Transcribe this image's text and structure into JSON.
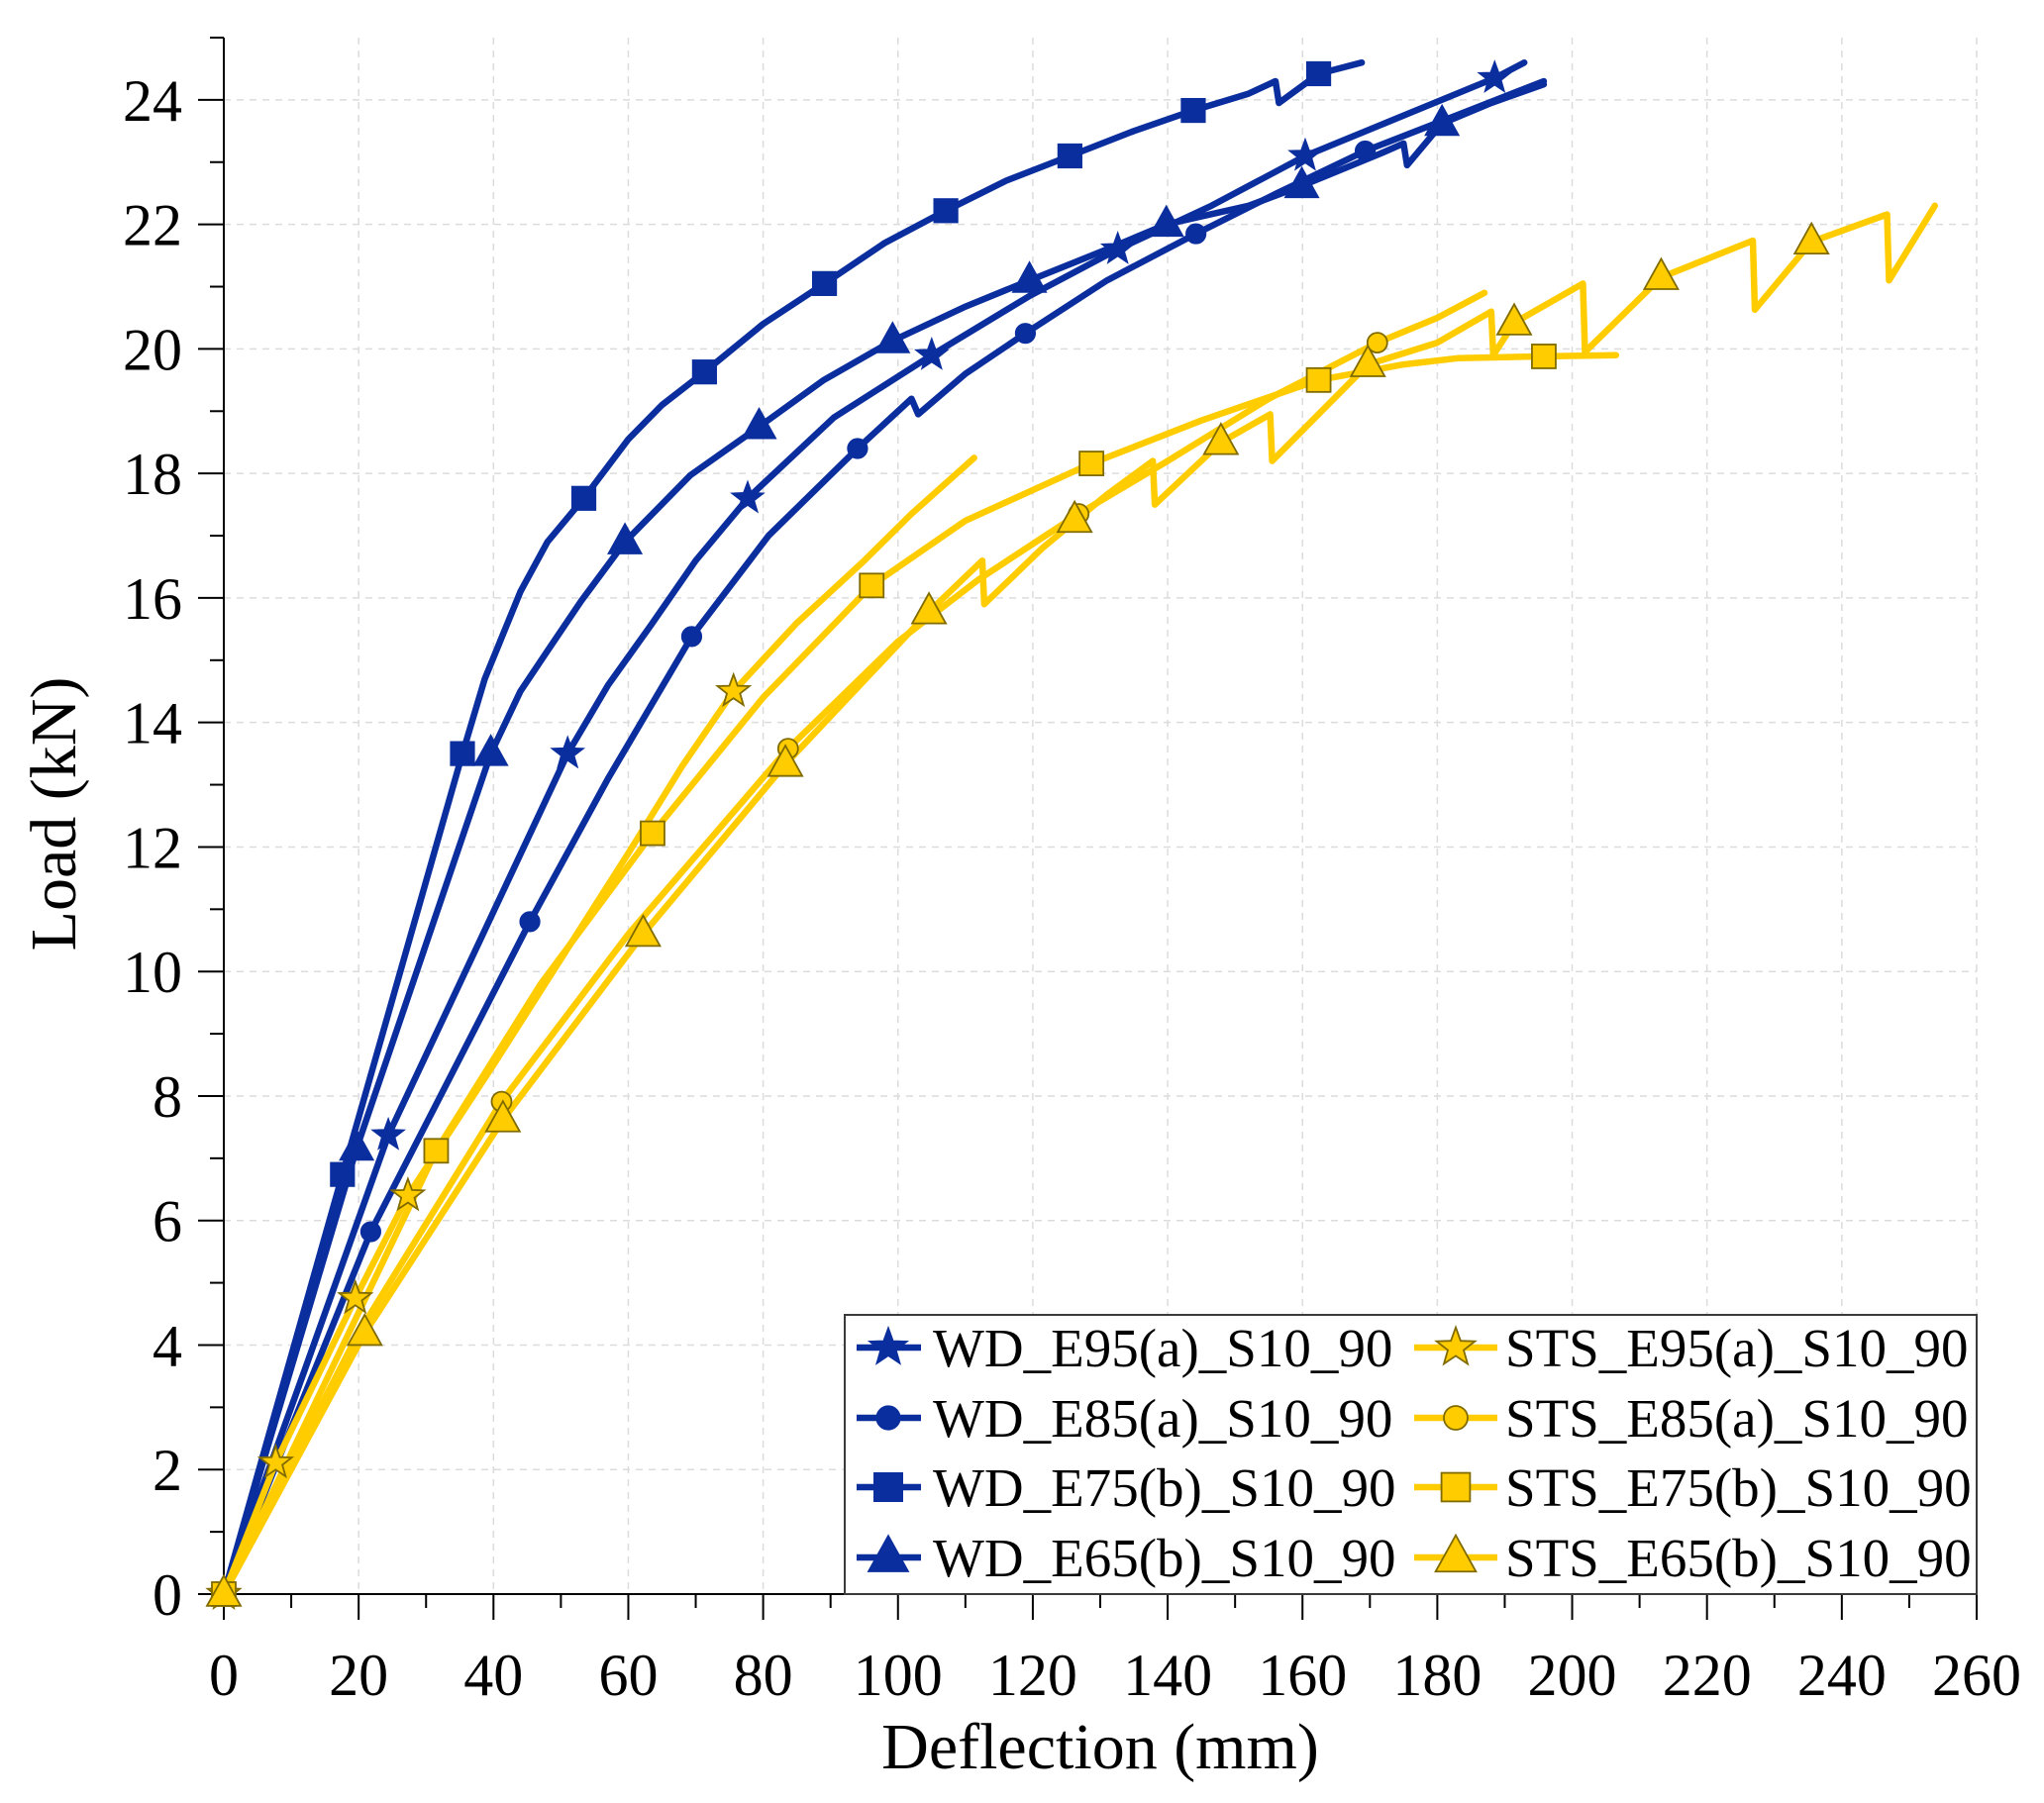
{
  "chart_data": {
    "type": "line",
    "title": "",
    "xlabel": "Deflection (mm)",
    "ylabel": "Load (kN)",
    "xlim": [
      0,
      260
    ],
    "ylim": [
      0,
      25
    ],
    "xticks": [
      0,
      20,
      40,
      60,
      80,
      100,
      120,
      140,
      160,
      180,
      200,
      220,
      240,
      260
    ],
    "yticks": [
      0,
      2,
      4,
      6,
      8,
      10,
      12,
      14,
      16,
      18,
      20,
      22,
      24
    ],
    "grid": true,
    "grid_style": "dashed",
    "legend": {
      "position": "bottom-right",
      "columns": 2
    },
    "series": [
      {
        "name": "WD_E95(a)_S10_90",
        "color": "#0b2e9e",
        "marker": "star",
        "marker_edge": "#0b2e9e",
        "x": [
          0,
          12,
          24.4,
          38,
          51,
          57,
          63.4,
          70,
          77.7,
          90.5,
          105,
          119.5,
          132.6,
          146.5,
          160.4,
          175.5,
          188.5,
          192.9
        ],
        "y": [
          0,
          3.6,
          7.37,
          10.5,
          13.5,
          14.6,
          15.57,
          16.6,
          17.6,
          18.9,
          19.9,
          20.85,
          21.6,
          22.3,
          23.1,
          23.77,
          24.35,
          24.6
        ],
        "marker_x": [
          0,
          24.4,
          51.0,
          77.7,
          105.0,
          132.6,
          160.4,
          188.5
        ],
        "marker_y": [
          0,
          7.37,
          13.5,
          17.6,
          19.9,
          21.6,
          23.1,
          24.35
        ]
      },
      {
        "name": "WD_E85(a)_S10_90",
        "color": "#0b2e9e",
        "marker": "circle",
        "marker_edge": "#0b2e9e",
        "x": [
          0,
          21.8,
          45.4,
          57,
          69.4,
          80.8,
          94,
          102,
          103,
          110,
          118.9,
          131,
          144.2,
          156.2,
          169.3,
          183.3,
          195.8
        ],
        "y": [
          0,
          5.82,
          10.8,
          13.1,
          15.38,
          17.0,
          18.4,
          19.2,
          18.95,
          19.6,
          20.25,
          21.1,
          21.85,
          22.5,
          23.18,
          23.77,
          24.3
        ],
        "marker_x": [
          0,
          21.8,
          45.4,
          69.4,
          94.0,
          118.9,
          144.2,
          169.3
        ],
        "marker_y": [
          0,
          5.82,
          10.8,
          15.38,
          18.4,
          20.25,
          21.85,
          23.18
        ]
      },
      {
        "name": "WD_E75(b)_S10_90",
        "color": "#0b2e9e",
        "marker": "square",
        "marker_edge": "#0b2e9e",
        "x": [
          0,
          17.6,
          35.4,
          38.7,
          44,
          48,
          53.4,
          60,
          65,
          71.3,
          80,
          89.1,
          98,
          107.1,
          116,
          125.5,
          135,
          143.8,
          152,
          156,
          156.5,
          162.4,
          168.8
        ],
        "y": [
          0,
          6.74,
          13.5,
          14.7,
          16.1,
          16.9,
          17.6,
          18.55,
          19.1,
          19.63,
          20.4,
          21.05,
          21.7,
          22.22,
          22.7,
          23.1,
          23.5,
          23.83,
          24.1,
          24.3,
          23.95,
          24.42,
          24.6
        ],
        "marker_x": [
          0,
          17.6,
          35.4,
          53.4,
          71.3,
          89.1,
          107.1,
          125.5,
          143.8,
          162.4
        ],
        "marker_y": [
          0,
          6.74,
          13.5,
          17.6,
          19.63,
          21.05,
          22.22,
          23.1,
          23.83,
          24.42
        ]
      },
      {
        "name": "WD_E65(b)_S10_90",
        "color": "#0b2e9e",
        "marker": "triangle",
        "marker_edge": "#0b2e9e",
        "x": [
          0,
          19.7,
          39.6,
          44,
          48,
          53,
          59.5,
          69.2,
          79.4,
          89,
          99.2,
          109.8,
          119.5,
          131,
          139.8,
          152,
          159.9,
          171.6,
          175,
          175.5,
          180.7,
          188,
          195.8
        ],
        "y": [
          0,
          7.16,
          13.5,
          14.5,
          15.15,
          15.95,
          16.9,
          17.97,
          18.75,
          19.5,
          20.13,
          20.67,
          21.1,
          21.6,
          22.0,
          22.3,
          22.62,
          23.14,
          23.3,
          22.95,
          23.62,
          23.95,
          24.25
        ],
        "marker_x": [
          0,
          19.7,
          39.6,
          59.5,
          79.4,
          99.2,
          119.5,
          139.8,
          159.9,
          180.7
        ],
        "marker_y": [
          0,
          7.16,
          13.5,
          16.9,
          18.75,
          20.13,
          21.1,
          22.0,
          22.62,
          23.62
        ]
      },
      {
        "name": "STS_E95(a)_S10_90",
        "color": "#ffcc00",
        "marker": "star",
        "marker_edge": "#806b00",
        "x": [
          0,
          7.7,
          19.5,
          27.3,
          40,
          50,
          60,
          68,
          75.6,
          85,
          95,
          102,
          111.3
        ],
        "y": [
          0,
          2.11,
          4.75,
          6.4,
          8.5,
          10.2,
          11.9,
          13.3,
          14.5,
          15.6,
          16.6,
          17.35,
          18.25
        ],
        "marker_x": [
          0,
          7.7,
          19.5,
          27.3,
          75.6
        ],
        "marker_y": [
          0,
          2.11,
          4.75,
          6.4,
          14.5
        ]
      },
      {
        "name": "STS_E85(a)_S10_90",
        "color": "#ffcc00",
        "marker": "circle",
        "marker_edge": "#806b00",
        "x": [
          0,
          20,
          41.2,
          60,
          83.7,
          100,
          112,
          126.8,
          140,
          155,
          171.1,
          180,
          187
        ],
        "y": [
          0,
          4.2,
          7.91,
          10.6,
          13.58,
          15.3,
          16.3,
          17.35,
          18.2,
          19.2,
          20.1,
          20.5,
          20.9
        ],
        "marker_x": [
          0,
          41.2,
          83.7,
          126.8,
          171.1
        ],
        "marker_y": [
          0,
          7.91,
          13.58,
          17.35,
          20.1
        ]
      },
      {
        "name": "STS_E75(b)_S10_90",
        "color": "#ffcc00",
        "marker": "square",
        "marker_edge": "#806b00",
        "x": [
          0,
          31.5,
          47,
          63.6,
          80,
          96.1,
          110,
          128.7,
          145,
          162.4,
          175,
          183,
          195.8,
          206.5
        ],
        "y": [
          0,
          7.12,
          9.8,
          12.22,
          14.4,
          16.2,
          17.24,
          18.16,
          18.85,
          19.5,
          19.75,
          19.85,
          19.88,
          19.9
        ],
        "marker_x": [
          0,
          31.5,
          63.6,
          96.1,
          128.7,
          162.4,
          195.8
        ],
        "marker_y": [
          0,
          7.12,
          12.22,
          16.2,
          18.16,
          19.5,
          19.88
        ]
      },
      {
        "name": "STS_E65(b)_S10_90",
        "color": "#ffcc00",
        "marker": "triangle",
        "marker_edge": "#806b00",
        "x": [
          0,
          20.9,
          41.4,
          62.2,
          83.3,
          104.6,
          112.5,
          112.8,
          121.4,
          131,
          137.8,
          138.1,
          147.9,
          155.2,
          155.5,
          169.7,
          180,
          188,
          188.3,
          191.4,
          201.6,
          201.9,
          213.2,
          226.8,
          227.1,
          235.5,
          246.7,
          247,
          253.8
        ],
        "y": [
          0,
          4.19,
          7.62,
          10.6,
          13.33,
          15.78,
          16.6,
          15.9,
          16.8,
          17.66,
          18.2,
          17.5,
          18.5,
          18.95,
          18.2,
          19.75,
          20.1,
          20.6,
          19.9,
          20.42,
          21.05,
          19.95,
          21.15,
          21.74,
          20.63,
          21.72,
          22.16,
          21.1,
          22.3
        ],
        "marker_x": [
          0,
          20.9,
          41.4,
          62.2,
          83.3,
          104.6,
          126.2,
          147.9,
          169.7,
          191.4,
          213.2,
          235.5
        ],
        "marker_y": [
          0,
          4.19,
          7.62,
          10.6,
          13.33,
          15.78,
          17.25,
          18.5,
          19.75,
          20.42,
          21.15,
          21.72
        ]
      }
    ]
  }
}
